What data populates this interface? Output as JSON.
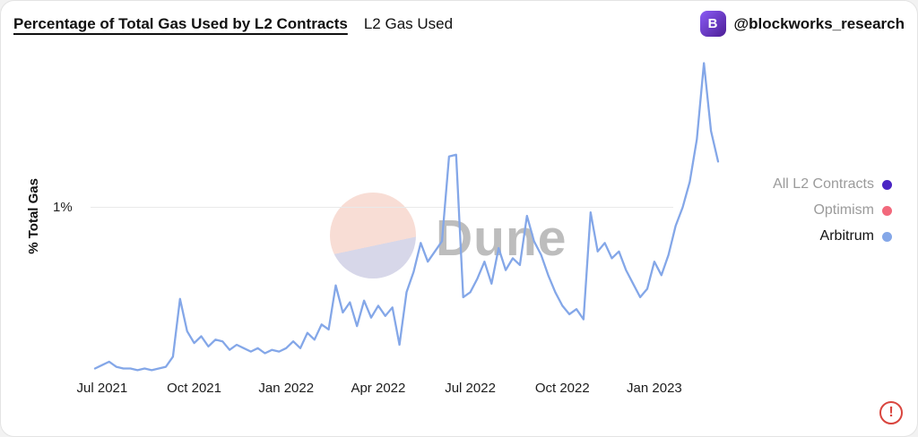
{
  "header": {
    "title": "Percentage of Total Gas Used by L2 Contracts",
    "subtitle": "L2 Gas Used",
    "account": "@blockworks_research",
    "logo_glyph": "B"
  },
  "watermark": "Dune",
  "legend": [
    {
      "label": "All L2 Contracts",
      "color": "#4a25c4",
      "active": false
    },
    {
      "label": "Optimism",
      "color": "#f2697c",
      "active": false
    },
    {
      "label": "Arbitrum",
      "color": "#84a7e8",
      "active": true
    }
  ],
  "alert_glyph": "!",
  "chart_data": {
    "type": "line",
    "title": "Percentage of Total Gas Used by L2 Contracts",
    "subtitle": "L2 Gas Used",
    "series_name": "Arbitrum",
    "line_color": "#84a7e8",
    "ylabel": "% Total Gas",
    "ylim": [
      0,
      1.9
    ],
    "ytick_labels": [
      "1%"
    ],
    "ytick_values": [
      1
    ],
    "grid": "horizontal-1%-only",
    "legend_position": "right",
    "legend_labels": [
      "All L2 Contracts",
      "Optimism",
      "Arbitrum"
    ],
    "x_unit": "week",
    "x_range": "Jul 2021 – Mar 2023",
    "x_tick_labels": [
      "Jul 2021",
      "Oct 2021",
      "Jan 2022",
      "Apr 2022",
      "Jul 2022",
      "Oct 2022",
      "Jan 2023"
    ],
    "xtick_indices": [
      1,
      14,
      27,
      40,
      53,
      66,
      79
    ],
    "values": [
      0.05,
      0.07,
      0.09,
      0.06,
      0.05,
      0.05,
      0.04,
      0.05,
      0.04,
      0.05,
      0.06,
      0.12,
      0.46,
      0.27,
      0.2,
      0.24,
      0.18,
      0.22,
      0.21,
      0.16,
      0.19,
      0.17,
      0.15,
      0.17,
      0.14,
      0.16,
      0.15,
      0.17,
      0.21,
      0.17,
      0.26,
      0.22,
      0.31,
      0.28,
      0.54,
      0.38,
      0.44,
      0.3,
      0.45,
      0.35,
      0.42,
      0.36,
      0.41,
      0.19,
      0.5,
      0.62,
      0.79,
      0.68,
      0.74,
      0.8,
      1.3,
      1.31,
      0.47,
      0.5,
      0.58,
      0.68,
      0.55,
      0.76,
      0.63,
      0.7,
      0.66,
      0.95,
      0.8,
      0.72,
      0.6,
      0.5,
      0.42,
      0.37,
      0.4,
      0.34,
      0.97,
      0.74,
      0.79,
      0.7,
      0.74,
      0.63,
      0.55,
      0.47,
      0.52,
      0.68,
      0.6,
      0.72,
      0.89,
      1.0,
      1.15,
      1.4,
      1.85,
      1.45,
      1.27
    ]
  }
}
